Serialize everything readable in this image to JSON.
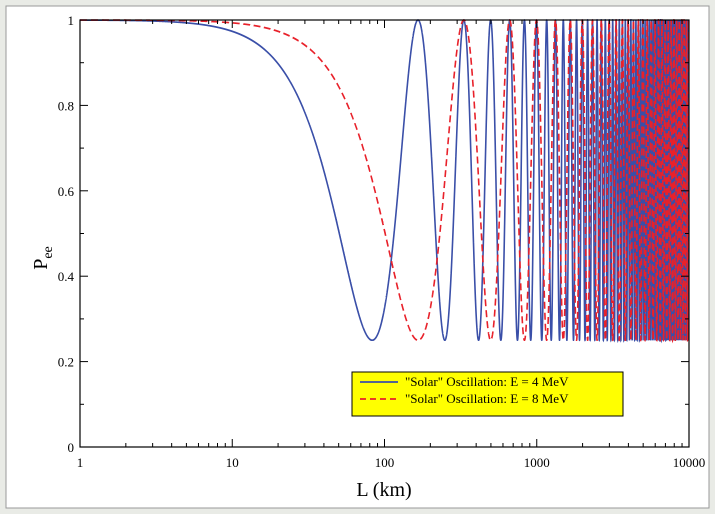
{
  "chart_data": {
    "type": "line",
    "title": "",
    "xlabel": "L (km)",
    "ylabel_main": "P",
    "ylabel_sub": "ee",
    "x_scale": "log",
    "xlim": [
      1,
      10000
    ],
    "ylim": [
      0,
      1
    ],
    "x_ticks": [
      "1",
      "10",
      "100",
      "1000",
      "10000"
    ],
    "y_ticks": [
      "0",
      "0.2",
      "0.4",
      "0.6",
      "0.8",
      "1"
    ],
    "grid": false,
    "legend_position": "lower-right",
    "series": [
      {
        "name": "\"Solar\" Oscillation: E = 4 MeV",
        "color": "#3a4fa8",
        "style": "solid",
        "model": {
          "p_min": 0.25,
          "first_min_L_km": 83
        }
      },
      {
        "name": "\"Solar\" Oscillation: E = 8 MeV",
        "color": "#e8212a",
        "style": "dashed",
        "model": {
          "p_min": 0.25,
          "first_min_L_km": 166
        }
      }
    ]
  },
  "colors": {
    "background": "#e9ebe6",
    "plot_background": "#ffffff",
    "legend_background": "#ffff00"
  }
}
